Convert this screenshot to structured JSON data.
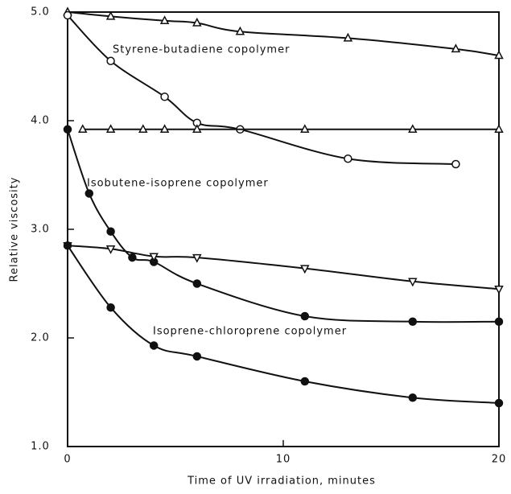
{
  "chart_data": {
    "type": "scatter",
    "xlabel": "Time of UV irradiation, minutes",
    "ylabel": "Relative viscosity",
    "annotations": [
      "Styrene-butadiene copolymer",
      "Isobutene-isoprene copolymer",
      "Isoprene-chloroprene copolymer"
    ],
    "xlim": [
      0,
      20
    ],
    "ylim": [
      1,
      5
    ],
    "xticks": [
      0,
      10,
      20
    ],
    "yticks": [
      {
        "value": 1,
        "label": "1.0"
      },
      {
        "value": 2,
        "label": "2.0"
      },
      {
        "value": 3,
        "label": "3.0"
      },
      {
        "value": 4,
        "label": "4.0"
      },
      {
        "value": 5,
        "label": "5.0"
      }
    ],
    "color": "#111111",
    "series": [
      {
        "marker": "triangle",
        "x": [
          0,
          2,
          4.5,
          6,
          8,
          13,
          18,
          20
        ],
        "values": [
          5.0,
          4.96,
          4.92,
          4.9,
          4.82,
          4.76,
          4.66,
          4.6
        ]
      },
      {
        "marker": "circle",
        "x": [
          0,
          2,
          4.5,
          6,
          8,
          13,
          18
        ],
        "values": [
          4.97,
          4.55,
          4.22,
          3.98,
          3.92,
          3.65,
          3.6
        ]
      },
      {
        "marker": "triangle",
        "x": [
          0.7,
          2,
          3.5,
          4.5,
          6,
          11,
          16,
          20
        ],
        "values": [
          3.92,
          3.92,
          3.92,
          3.92,
          3.92,
          3.92,
          3.92,
          3.92
        ]
      },
      {
        "marker": "filled-circle",
        "x": [
          0,
          1,
          2,
          3,
          4,
          6,
          11,
          16,
          20
        ],
        "values": [
          3.92,
          3.33,
          2.98,
          2.74,
          2.7,
          2.5,
          2.2,
          2.15,
          2.15
        ]
      },
      {
        "marker": "down-triangle",
        "x": [
          0,
          2,
          4,
          6,
          11,
          16,
          20
        ],
        "values": [
          2.85,
          2.82,
          2.75,
          2.74,
          2.64,
          2.52,
          2.45
        ]
      },
      {
        "marker": "filled-circle",
        "x": [
          0,
          2,
          4,
          6,
          11,
          16,
          20
        ],
        "values": [
          2.85,
          2.28,
          1.93,
          1.83,
          1.6,
          1.45,
          1.4
        ]
      }
    ]
  }
}
